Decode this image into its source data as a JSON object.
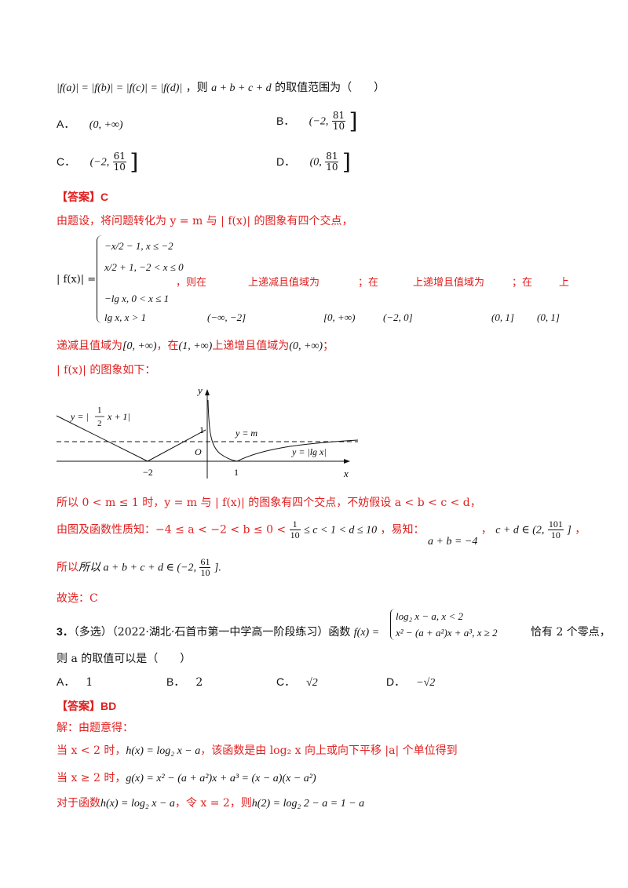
{
  "intro": {
    "condition": "|f(a)| = |f(b)| = |f(c)| = |f(d)|",
    "ask": "，则",
    "expr": "a + b + c + d",
    "ask_tail": "的取值范围为（　　）"
  },
  "options_q2": [
    {
      "key": "A．",
      "value": "(0, +∞)"
    },
    {
      "key": "B．",
      "left": "(−2,",
      "num": "81",
      "den": "10",
      "right": "]"
    },
    {
      "key": "C．",
      "left": "(−2,",
      "num": "61",
      "den": "10",
      "right": "]"
    },
    {
      "key": "D．",
      "left": "(0,",
      "num": "81",
      "den": "10",
      "right": "]"
    }
  ],
  "answer_q2": {
    "label": "【答案】C"
  },
  "sol": {
    "l1": "由题设，将问题转化为 y = m 与 | f(x)| 的图象有四个交点，",
    "piece_lhs": "| f(x)| =",
    "pieces": [
      "−x/2 − 1, x ≤ −2",
      "x/2 + 1, −2 < x ≤ 0",
      "−lg x, 0 < x ≤ 1",
      "lg x, x > 1"
    ],
    "p_text1": "，则在",
    "p_text2": "上递减且值域为",
    "p_text3": "；在",
    "p_text4": "上递增且值域为",
    "p_text5": "；在",
    "p_text6": "上",
    "i1": "(−∞, −2]",
    "i2": "[0, +∞)",
    "i3": "(−2, 0]",
    "i4": "(0, 1]",
    "i5": "(0, 1]",
    "l3a": "递减且值域为",
    "l3b": "[0, +∞)",
    "l3c": "，在",
    "l3d": "(1, +∞)",
    "l3e": "上递增且值域为",
    "l3f": "(0, +∞)",
    "l3g": "；",
    "l4": "| f(x)| 的图象如下：",
    "l5": "所以 0 < m ≤ 1 时，y = m 与 | f(x)| 的图象有四个交点，不妨假设 a < b < c < d，",
    "l6a": "由图及函数性质知：−4 ≤ a < −2 < b ≤ 0 <",
    "l6b": "≤ c < 1 < d ≤ 10",
    "l6c": "，易知：",
    "l6d": "a + b = −4",
    "l6e": "，",
    "l6f": "c + d ∈ (2,",
    "l6g": "]",
    "l6h": "，",
    "l7a": "所以 a + b + c + d ∈ (−2,",
    "l7b": "].",
    "l8": "故选：C"
  },
  "graph": {
    "y_axis": "y",
    "x_axis": "x",
    "origin": "O",
    "label_left_pre": "y = |",
    "label_left_post": "x + 1|",
    "label_m": "y = m",
    "label_lg": "y = |lg x|",
    "tick_neg2": "−2",
    "tick_1": "1",
    "tick_y1": "1",
    "frac_half_n": "1",
    "frac_half_d": "2"
  },
  "q3": {
    "num": "3．",
    "head": "（多选）（2022·湖北·石首市第一中学高一阶段练习）函数",
    "fx": "f(x) =",
    "case1": "log₂ x − a, x < 2",
    "case2": "x² − (a + a²)x + a³, x ≥ 2",
    "tail": "恰有 2 个零点，",
    "l2": "则 a 的取值可以是（　　）",
    "options": [
      {
        "key": "A．",
        "value": "1"
      },
      {
        "key": "B．",
        "value": "2"
      },
      {
        "key": "C．",
        "value": "√2"
      },
      {
        "key": "D．",
        "value": "−√2"
      }
    ],
    "answer": "【答案】BD",
    "s1": "解：由题意得：",
    "s2a": "当 x < 2 时，",
    "s2b": "h(x) = log₂ x − a",
    "s2c": "，该函数是由 log₂ x 向上或向下平移 |a| 个单位得到",
    "s3a": "当 x ≥ 2 时，",
    "s3b": "g(x) = x² − (a + a²)x + a³ = (x − a)(x − a²)",
    "s4a": "对于函数",
    "s4b": "h(x) = log₂ x − a",
    "s4c": "，令 x = 2，则",
    "s4d": "h(2) = log₂ 2 − a = 1 − a"
  }
}
